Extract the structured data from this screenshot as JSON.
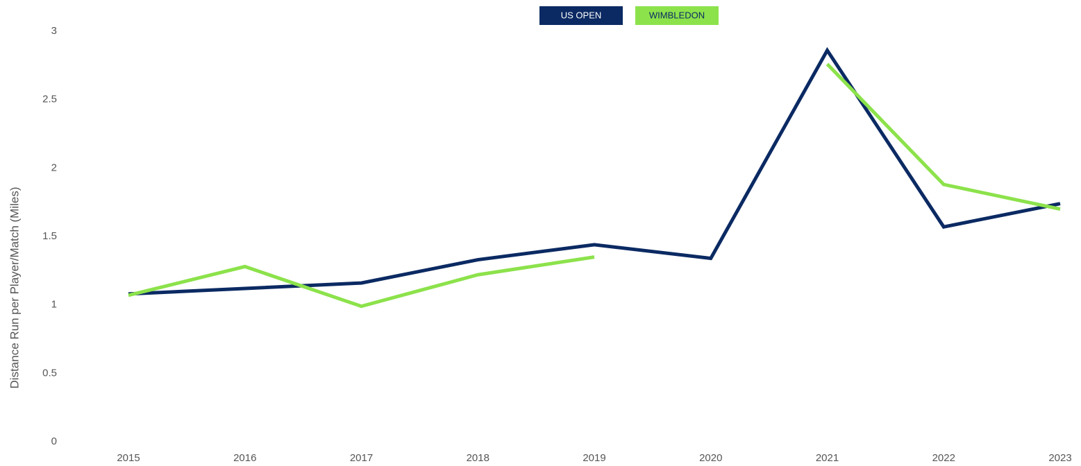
{
  "chart_data": {
    "type": "line",
    "y_label": "Distance Run per Player/Match (Miles)",
    "categories": [
      "2015",
      "2016",
      "2017",
      "2018",
      "2019",
      "2020",
      "2021",
      "2022",
      "2023"
    ],
    "series": [
      {
        "name": "US OPEN",
        "color": "#0b2a63",
        "values": [
          1.08,
          1.12,
          1.16,
          1.33,
          1.44,
          1.34,
          2.86,
          1.57,
          1.74
        ]
      },
      {
        "name": "WIMBLEDON",
        "color": "#8ce24b",
        "values": [
          1.07,
          1.28,
          0.99,
          1.22,
          1.35,
          null,
          2.76,
          1.88,
          1.7
        ]
      }
    ],
    "ylim": [
      0,
      3
    ],
    "yticks": [
      0,
      0.5,
      1,
      1.5,
      2,
      2.5,
      3
    ],
    "grid": false,
    "legend": "top"
  }
}
